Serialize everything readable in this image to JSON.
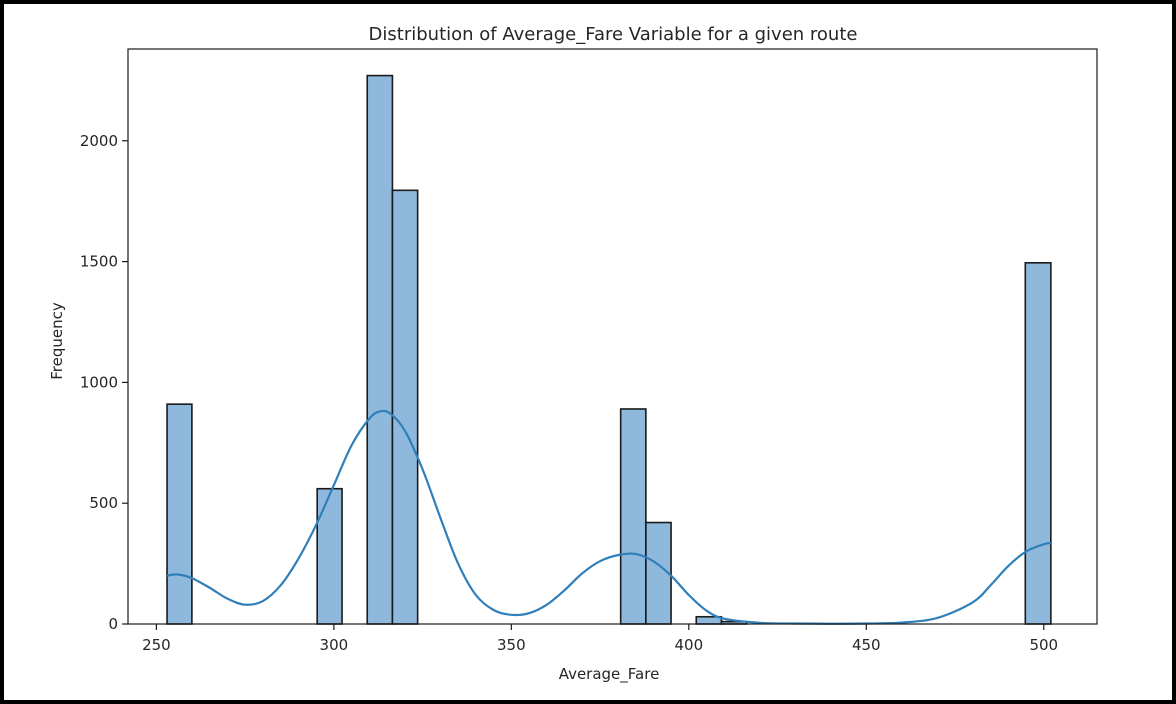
{
  "chart_data": {
    "type": "bar",
    "title": "Distribution of Average_Fare Variable for a given route",
    "xlabel": "Average_Fare",
    "ylabel": "Frequency",
    "xlim": [
      242,
      515
    ],
    "ylim": [
      0,
      2380
    ],
    "x_ticks": [
      250,
      300,
      350,
      400,
      450,
      500
    ],
    "y_ticks": [
      0,
      500,
      1000,
      1500,
      2000
    ],
    "grid": false,
    "legend": "none",
    "bar_fill": "#8fb9dc",
    "bar_edge": "#1a1a1a",
    "kde_color": "#2f7fba",
    "bins": [
      {
        "x0": 253,
        "x1": 260,
        "count": 910
      },
      {
        "x0": 295.3,
        "x1": 302.3,
        "count": 560
      },
      {
        "x0": 309.4,
        "x1": 316.5,
        "count": 2270
      },
      {
        "x0": 316.5,
        "x1": 323.6,
        "count": 1795
      },
      {
        "x0": 380.8,
        "x1": 387.9,
        "count": 890
      },
      {
        "x0": 387.9,
        "x1": 395,
        "count": 420
      },
      {
        "x0": 402.1,
        "x1": 409.2,
        "count": 30
      },
      {
        "x0": 409.2,
        "x1": 416.3,
        "count": 10
      },
      {
        "x0": 494.8,
        "x1": 502,
        "count": 1495
      }
    ],
    "kde": {
      "x": [
        253,
        256,
        260,
        265,
        270,
        275,
        280,
        285,
        290,
        295,
        300,
        305,
        310,
        313,
        316,
        320,
        325,
        330,
        335,
        340,
        345,
        350,
        355,
        360,
        365,
        370,
        375,
        380,
        385,
        390,
        395,
        400,
        405,
        410,
        420,
        430,
        440,
        450,
        460,
        470,
        480,
        485,
        490,
        495,
        500,
        502
      ],
      "y": [
        200,
        205,
        190,
        150,
        105,
        80,
        95,
        160,
        270,
        410,
        575,
        740,
        850,
        880,
        870,
        800,
        640,
        440,
        250,
        120,
        58,
        38,
        45,
        80,
        140,
        210,
        260,
        285,
        290,
        260,
        200,
        120,
        55,
        22,
        5,
        2,
        1,
        2,
        6,
        25,
        90,
        160,
        240,
        300,
        330,
        335
      ]
    }
  }
}
